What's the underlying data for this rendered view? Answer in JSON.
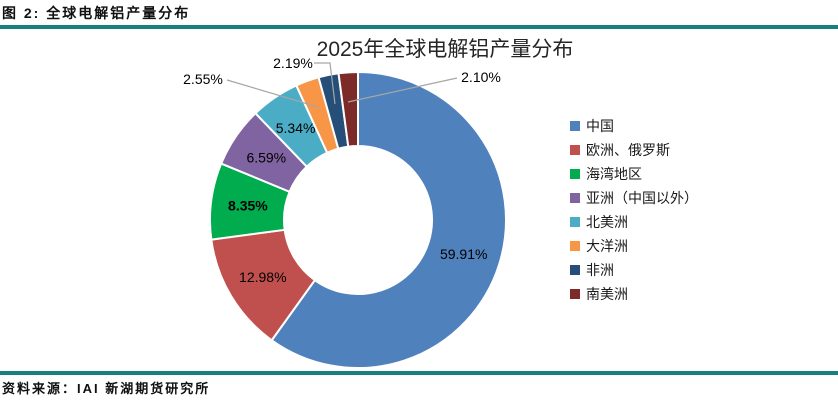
{
  "header": {
    "title": "图 2: 全球电解铝产量分布"
  },
  "chart_data": {
    "type": "pie",
    "title": "2025年全球电解铝产量分布",
    "unit": "%",
    "hole": 0.5,
    "start_angle_deg": 0,
    "direction": "clockwise",
    "legend_position": "right",
    "series": [
      {
        "name": "中国",
        "value": 59.91,
        "label": "59.91%",
        "color": "#4F81BD",
        "label_placement": "inside",
        "bold": false
      },
      {
        "name": "欧洲、俄罗斯",
        "value": 12.98,
        "label": "12.98%",
        "color": "#C0504D",
        "label_placement": "inside",
        "bold": false
      },
      {
        "name": "海湾地区",
        "value": 8.35,
        "label": "8.35%",
        "color": "#00AC4E",
        "label_placement": "inside",
        "bold": true
      },
      {
        "name": "亚洲（中国以外）",
        "value": 6.59,
        "label": "6.59%",
        "color": "#8064A2",
        "label_placement": "inside",
        "bold": false
      },
      {
        "name": "北美洲",
        "value": 5.34,
        "label": "5.34%",
        "color": "#4BACC6",
        "label_placement": "inside",
        "bold": false
      },
      {
        "name": "大洋洲",
        "value": 2.55,
        "label": "2.55%",
        "color": "#F79646",
        "label_placement": "outside",
        "bold": false
      },
      {
        "name": "非洲",
        "value": 2.19,
        "label": "2.19%",
        "color": "#254E78",
        "label_placement": "outside",
        "bold": false
      },
      {
        "name": "南美洲",
        "value": 2.1,
        "label": "2.10%",
        "color": "#7D2B28",
        "label_placement": "outside",
        "bold": false
      }
    ],
    "leader_line_color": "#A6A6A6"
  },
  "footer": {
    "source": "资料来源：IAI 新湖期货研究所"
  },
  "theme": {
    "rule_color": "#17827D",
    "label_color": "#000000",
    "title_color": "#262626"
  }
}
